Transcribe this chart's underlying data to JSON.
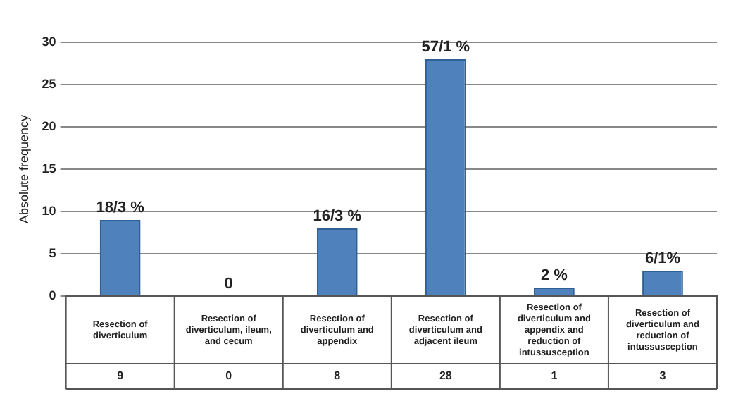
{
  "chart_data": {
    "type": "bar",
    "ylabel": "Absolute frequency",
    "categories": [
      "Resection of diverticulum",
      "Resection of diverticulum, ileum, and cecum",
      "Resection of diverticulum and appendix",
      "Resection of diverticulum and adjacent ileum",
      "Resection of diverticulum and appendix and reduction of intussusception",
      "Resection of diverticulum  and reduction of intussusception"
    ],
    "values": [
      9,
      0,
      8,
      28,
      1,
      3
    ],
    "value_labels": [
      "9",
      "0",
      "8",
      "28",
      "1",
      "3"
    ],
    "annotations": [
      {
        "text": "18/3 %",
        "x": "Resection of diverticulum",
        "y": 9
      },
      {
        "text": "0",
        "x": "Resection of diverticulum, ileum, and cecum",
        "y": 0
      },
      {
        "text": "16/3 %",
        "x": "Resection of diverticulum and appendix",
        "y": 8
      },
      {
        "text": "57/1 %",
        "x": "Resection of diverticulum and adjacent ileum",
        "y": 28
      },
      {
        "text": "2 %",
        "x": "Resection of diverticulum and appendix and reduction of intussusception",
        "y": 1
      },
      {
        "text": "6/1%",
        "x": "Resection of diverticulum  and reduction of intussusception",
        "y": 3
      }
    ],
    "color": "#4f81bd",
    "ylim": [
      0,
      30
    ],
    "yticks": [
      0,
      5,
      10,
      15,
      20,
      25,
      30
    ],
    "grid": "y",
    "legend": false
  }
}
